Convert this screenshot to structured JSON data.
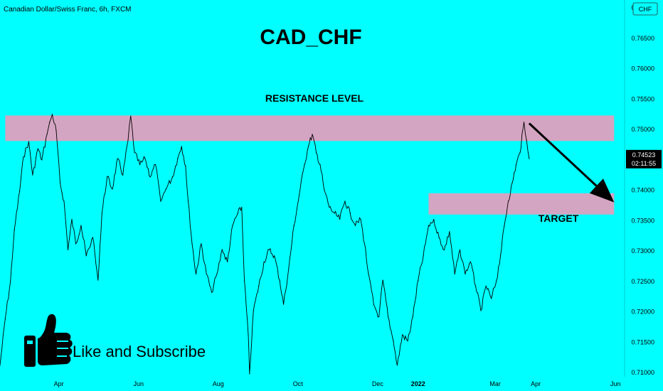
{
  "header": {
    "symbol_description": "Canadian Dollar/Swiss Franc, 6h, FXCM",
    "title": "CAD_CHF"
  },
  "annotations": {
    "resistance_label": "RESISTANCE LEVEL",
    "target_label": "TARGET",
    "cta_text": "Like and Subscribe",
    "cta_icon": "thumbs-up-icon"
  },
  "price_axis": {
    "currency": "CHF",
    "last_price": "0.74523",
    "countdown": "02:11:55"
  },
  "colors": {
    "background": "#00ffff",
    "zone": "#d4a5c2",
    "price_tag": "#000000"
  },
  "chart_data": {
    "type": "line",
    "title": "CAD_CHF",
    "y_scale": "linear",
    "ylim": [
      0.7093,
      0.7713
    ],
    "xlim": [
      "2021-02-15",
      "2022-06-08"
    ],
    "y_ticks": [
      "0.77000",
      "0.76500",
      "0.76000",
      "0.75500",
      "0.75000",
      "0.74500",
      "0.74000",
      "0.73500",
      "0.73000",
      "0.72500",
      "0.72000",
      "0.71500",
      "0.71000"
    ],
    "x_ticks": [
      {
        "label": "Apr",
        "date": "2021-04-01"
      },
      {
        "label": "Jun",
        "date": "2021-06-01"
      },
      {
        "label": "Aug",
        "date": "2021-08-01"
      },
      {
        "label": "Oct",
        "date": "2021-10-01"
      },
      {
        "label": "Dec",
        "date": "2021-12-01"
      },
      {
        "label": "2022",
        "date": "2022-01-01"
      },
      {
        "label": "Mar",
        "date": "2022-03-01"
      },
      {
        "label": "Apr",
        "date": "2022-04-01"
      },
      {
        "label": "Jun",
        "date": "2022-06-01"
      }
    ],
    "series": [
      {
        "points": [
          [
            "2021-02-15",
            0.7112
          ],
          [
            "2021-02-19",
            0.7188
          ],
          [
            "2021-02-23",
            0.725
          ],
          [
            "2021-02-26",
            0.7335
          ],
          [
            "2021-03-02",
            0.7398
          ],
          [
            "2021-03-05",
            0.7455
          ],
          [
            "2021-03-09",
            0.748
          ],
          [
            "2021-03-12",
            0.7425
          ],
          [
            "2021-03-16",
            0.7468
          ],
          [
            "2021-03-19",
            0.745
          ],
          [
            "2021-03-23",
            0.7492
          ],
          [
            "2021-03-25",
            0.7512
          ],
          [
            "2021-03-27",
            0.7525
          ],
          [
            "2021-03-30",
            0.7498
          ],
          [
            "2021-04-02",
            0.7412
          ],
          [
            "2021-04-05",
            0.7382
          ],
          [
            "2021-04-08",
            0.7302
          ],
          [
            "2021-04-11",
            0.7352
          ],
          [
            "2021-04-14",
            0.7312
          ],
          [
            "2021-04-18",
            0.7342
          ],
          [
            "2021-04-22",
            0.7292
          ],
          [
            "2021-04-27",
            0.7322
          ],
          [
            "2021-05-01",
            0.7252
          ],
          [
            "2021-05-04",
            0.7362
          ],
          [
            "2021-05-08",
            0.7422
          ],
          [
            "2021-05-12",
            0.7402
          ],
          [
            "2021-05-16",
            0.7452
          ],
          [
            "2021-05-20",
            0.7425
          ],
          [
            "2021-05-24",
            0.7482
          ],
          [
            "2021-05-26",
            0.7522
          ],
          [
            "2021-05-29",
            0.7462
          ],
          [
            "2021-06-02",
            0.7442
          ],
          [
            "2021-06-06",
            0.7452
          ],
          [
            "2021-06-10",
            0.7422
          ],
          [
            "2021-06-14",
            0.7442
          ],
          [
            "2021-06-18",
            0.7382
          ],
          [
            "2021-06-22",
            0.7402
          ],
          [
            "2021-06-27",
            0.7422
          ],
          [
            "2021-07-01",
            0.7452
          ],
          [
            "2021-07-04",
            0.7472
          ],
          [
            "2021-07-07",
            0.744
          ],
          [
            "2021-07-09",
            0.7382
          ],
          [
            "2021-07-12",
            0.7312
          ],
          [
            "2021-07-15",
            0.7262
          ],
          [
            "2021-07-19",
            0.7312
          ],
          [
            "2021-07-23",
            0.7262
          ],
          [
            "2021-07-27",
            0.7232
          ],
          [
            "2021-07-31",
            0.7262
          ],
          [
            "2021-08-04",
            0.7302
          ],
          [
            "2021-08-08",
            0.7282
          ],
          [
            "2021-08-12",
            0.7342
          ],
          [
            "2021-08-16",
            0.7362
          ],
          [
            "2021-08-19",
            0.7372
          ],
          [
            "2021-08-21",
            0.7252
          ],
          [
            "2021-08-24",
            0.7162
          ],
          [
            "2021-08-25",
            0.7098
          ],
          [
            "2021-08-28",
            0.7202
          ],
          [
            "2021-09-01",
            0.7242
          ],
          [
            "2021-09-05",
            0.7282
          ],
          [
            "2021-09-09",
            0.7302
          ],
          [
            "2021-09-13",
            0.7292
          ],
          [
            "2021-09-17",
            0.7252
          ],
          [
            "2021-09-20",
            0.7212
          ],
          [
            "2021-09-24",
            0.7272
          ],
          [
            "2021-09-28",
            0.7342
          ],
          [
            "2021-10-02",
            0.7392
          ],
          [
            "2021-10-06",
            0.7442
          ],
          [
            "2021-10-09",
            0.7472
          ],
          [
            "2021-10-12",
            0.7492
          ],
          [
            "2021-10-15",
            0.7462
          ],
          [
            "2021-10-18",
            0.7442
          ],
          [
            "2021-10-21",
            0.7402
          ],
          [
            "2021-10-25",
            0.7372
          ],
          [
            "2021-10-29",
            0.7362
          ],
          [
            "2021-11-02",
            0.7352
          ],
          [
            "2021-11-06",
            0.7382
          ],
          [
            "2021-11-10",
            0.7362
          ],
          [
            "2021-11-14",
            0.7342
          ],
          [
            "2021-11-18",
            0.7352
          ],
          [
            "2021-11-21",
            0.7312
          ],
          [
            "2021-11-24",
            0.7262
          ],
          [
            "2021-11-28",
            0.7212
          ],
          [
            "2021-12-02",
            0.7192
          ],
          [
            "2021-12-05",
            0.7252
          ],
          [
            "2021-12-09",
            0.7192
          ],
          [
            "2021-12-13",
            0.7152
          ],
          [
            "2021-12-16",
            0.7112
          ],
          [
            "2021-12-20",
            0.7162
          ],
          [
            "2021-12-24",
            0.7152
          ],
          [
            "2021-12-28",
            0.7192
          ],
          [
            "2022-01-01",
            0.7252
          ],
          [
            "2022-01-05",
            0.7292
          ],
          [
            "2022-01-09",
            0.7342
          ],
          [
            "2022-01-13",
            0.7352
          ],
          [
            "2022-01-17",
            0.7322
          ],
          [
            "2022-01-21",
            0.7302
          ],
          [
            "2022-01-25",
            0.7332
          ],
          [
            "2022-01-29",
            0.7262
          ],
          [
            "2022-02-02",
            0.7302
          ],
          [
            "2022-02-06",
            0.7262
          ],
          [
            "2022-02-10",
            0.7282
          ],
          [
            "2022-02-14",
            0.7242
          ],
          [
            "2022-02-18",
            0.7202
          ],
          [
            "2022-02-22",
            0.7242
          ],
          [
            "2022-02-26",
            0.7222
          ],
          [
            "2022-03-02",
            0.7252
          ],
          [
            "2022-03-05",
            0.7292
          ],
          [
            "2022-03-08",
            0.7342
          ],
          [
            "2022-03-11",
            0.7382
          ],
          [
            "2022-03-14",
            0.7412
          ],
          [
            "2022-03-17",
            0.7442
          ],
          [
            "2022-03-20",
            0.7462
          ],
          [
            "2022-03-23",
            0.7512
          ],
          [
            "2022-03-25",
            0.7482
          ],
          [
            "2022-03-27",
            0.7452
          ]
        ]
      }
    ],
    "zones": [
      {
        "name": "RESISTANCE LEVEL",
        "from": "2021-02-19",
        "to": "2022-05-31",
        "y_low": 0.7481,
        "y_high": 0.7523
      },
      {
        "name": "TARGET",
        "from": "2022-01-09",
        "to": "2022-05-31",
        "y_low": 0.736,
        "y_high": 0.7395
      }
    ],
    "arrow": {
      "from": [
        "2022-03-27",
        0.751
      ],
      "to": [
        "2022-05-31",
        0.738
      ]
    },
    "last_price": 0.74523
  }
}
